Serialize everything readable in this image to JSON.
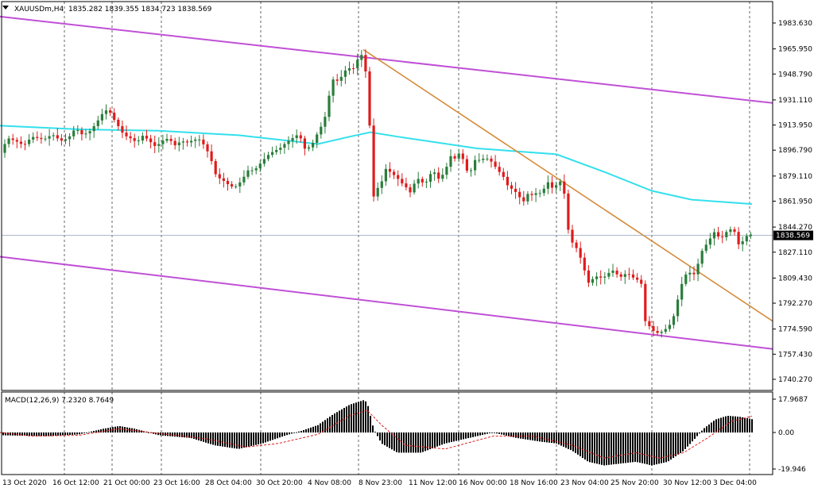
{
  "header": {
    "symbol": "XAUUSDm,H4",
    "ohlc": "1835.282 1839.355 1834.723 1838.569"
  },
  "macd_header": "MACD(12,26,9) 7.2320 8.7649",
  "chart_data": [
    {
      "type": "candlestick",
      "title": "XAUUSDm,H4",
      "ylim": [
        1740.27,
        1992.0
      ],
      "y_ticks": [
        "1983.630",
        "1965.950",
        "1948.790",
        "1931.110",
        "1913.950",
        "1896.790",
        "1879.110",
        "1861.950",
        "1844.270",
        "1827.110",
        "1809.430",
        "1792.270",
        "1774.590",
        "1757.430",
        "1740.270"
      ],
      "current_price": "1838.569",
      "x_labels": [
        "13 Oct 2020",
        "16 Oct 12:00",
        "21 Oct 00:00",
        "23 Oct 16:00",
        "28 Oct 04:00",
        "30 Oct 20:00",
        "4 Nov 08:00",
        "8 Nov 23:00",
        "11 Nov 12:00",
        "16 Nov 00:00",
        "18 Nov 16:00",
        "23 Nov 04:00",
        "25 Nov 20:00",
        "30 Nov 12:00",
        "3 Dec 04:00"
      ],
      "grid": true,
      "close_path": [
        [
          0,
          1895
        ],
        [
          10,
          1905
        ],
        [
          20,
          1903
        ],
        [
          30,
          1900
        ],
        [
          40,
          1906
        ],
        [
          55,
          1904
        ],
        [
          64,
          1907
        ],
        [
          68,
          1907
        ],
        [
          76,
          1903
        ],
        [
          86,
          1905
        ],
        [
          95,
          1912
        ],
        [
          104,
          1907
        ],
        [
          114,
          1910
        ],
        [
          122,
          1916
        ],
        [
          129,
          1922
        ],
        [
          136,
          1925
        ],
        [
          142,
          1919
        ],
        [
          149,
          1913
        ],
        [
          156,
          1907
        ],
        [
          164,
          1905
        ],
        [
          172,
          1902
        ],
        [
          180,
          1907
        ],
        [
          188,
          1903
        ],
        [
          196,
          1899
        ],
        [
          204,
          1903
        ],
        [
          212,
          1905
        ],
        [
          220,
          1900
        ],
        [
          228,
          1903
        ],
        [
          236,
          1902
        ],
        [
          244,
          1904
        ],
        [
          252,
          1904
        ],
        [
          258,
          1899
        ],
        [
          264,
          1893
        ],
        [
          272,
          1879
        ],
        [
          281,
          1876
        ],
        [
          290,
          1872
        ],
        [
          298,
          1872
        ],
        [
          305,
          1877
        ],
        [
          312,
          1883
        ],
        [
          320,
          1883
        ],
        [
          328,
          1888
        ],
        [
          336,
          1893
        ],
        [
          344,
          1896
        ],
        [
          352,
          1898
        ],
        [
          360,
          1902
        ],
        [
          368,
          1905
        ],
        [
          376,
          1908
        ],
        [
          384,
          1897
        ],
        [
          392,
          1900
        ],
        [
          400,
          1909
        ],
        [
          408,
          1917
        ],
        [
          414,
          1934
        ],
        [
          420,
          1947
        ],
        [
          426,
          1943
        ],
        [
          432,
          1950
        ],
        [
          438,
          1953
        ],
        [
          444,
          1952
        ],
        [
          449,
          1958
        ],
        [
          455,
          1962
        ],
        [
          461,
          1948
        ],
        [
          466,
          1905
        ],
        [
          470,
          1865
        ],
        [
          474,
          1870
        ],
        [
          480,
          1875
        ],
        [
          486,
          1885
        ],
        [
          492,
          1881
        ],
        [
          498,
          1879
        ],
        [
          504,
          1875
        ],
        [
          510,
          1872
        ],
        [
          516,
          1868
        ],
        [
          522,
          1875
        ],
        [
          528,
          1878
        ],
        [
          534,
          1872
        ],
        [
          540,
          1880
        ],
        [
          546,
          1882
        ],
        [
          552,
          1877
        ],
        [
          560,
          1882
        ],
        [
          566,
          1893
        ],
        [
          572,
          1891
        ],
        [
          578,
          1895
        ],
        [
          584,
          1889
        ],
        [
          590,
          1878
        ],
        [
          596,
          1890
        ],
        [
          602,
          1890
        ],
        [
          608,
          1891
        ],
        [
          614,
          1891
        ],
        [
          620,
          1888
        ],
        [
          626,
          1883
        ],
        [
          632,
          1880
        ],
        [
          640,
          1871
        ],
        [
          646,
          1870
        ],
        [
          652,
          1866
        ],
        [
          658,
          1861
        ],
        [
          664,
          1867
        ],
        [
          670,
          1866
        ],
        [
          676,
          1868
        ],
        [
          682,
          1867
        ],
        [
          688,
          1876
        ],
        [
          694,
          1871
        ],
        [
          700,
          1873
        ],
        [
          706,
          1876
        ],
        [
          712,
          1862
        ],
        [
          716,
          1835
        ],
        [
          722,
          1833
        ],
        [
          728,
          1827
        ],
        [
          734,
          1817
        ],
        [
          740,
          1806
        ],
        [
          746,
          1809
        ],
        [
          752,
          1811
        ],
        [
          758,
          1809
        ],
        [
          764,
          1812
        ],
        [
          770,
          1815
        ],
        [
          776,
          1812
        ],
        [
          782,
          1810
        ],
        [
          788,
          1813
        ],
        [
          794,
          1811
        ],
        [
          800,
          1808
        ],
        [
          806,
          1809
        ],
        [
          812,
          1779
        ],
        [
          818,
          1776
        ],
        [
          824,
          1772
        ],
        [
          830,
          1772
        ],
        [
          836,
          1774
        ],
        [
          842,
          1777
        ],
        [
          848,
          1784
        ],
        [
          854,
          1798
        ],
        [
          860,
          1810
        ],
        [
          866,
          1814
        ],
        [
          872,
          1811
        ],
        [
          876,
          1815
        ],
        [
          882,
          1827
        ],
        [
          888,
          1832
        ],
        [
          894,
          1837
        ],
        [
          900,
          1842
        ],
        [
          906,
          1835
        ],
        [
          912,
          1840
        ],
        [
          918,
          1843
        ],
        [
          924,
          1841
        ],
        [
          930,
          1831
        ],
        [
          936,
          1836
        ],
        [
          942,
          1840
        ],
        [
          946,
          1838.6
        ]
      ],
      "ma_line": [
        [
          0,
          1913.5
        ],
        [
          100,
          1911
        ],
        [
          200,
          1910
        ],
        [
          300,
          1907
        ],
        [
          400,
          1901
        ],
        [
          440,
          1906
        ],
        [
          466,
          1909
        ],
        [
          500,
          1906
        ],
        [
          600,
          1898
        ],
        [
          700,
          1894
        ],
        [
          760,
          1882
        ],
        [
          820,
          1869
        ],
        [
          870,
          1863
        ],
        [
          946,
          1860
        ]
      ],
      "channel_upper": [
        [
          0,
          1988
        ],
        [
          972,
          1929
        ]
      ],
      "channel_lower": [
        [
          0,
          1824
        ],
        [
          972,
          1761
        ]
      ],
      "trendline": [
        [
          457,
          1965.5
        ],
        [
          972,
          1780
        ]
      ]
    },
    {
      "type": "histogram",
      "title": "MACD(12,26,9)",
      "ylim": [
        -19.946,
        17.9687
      ],
      "y_ticks": [
        "17.9687",
        "0.00",
        "-19.946"
      ],
      "macd_hist": [
        [
          0,
          -1.5
        ],
        [
          60,
          -2
        ],
        [
          100,
          -1
        ],
        [
          130,
          2
        ],
        [
          150,
          3.5
        ],
        [
          170,
          2
        ],
        [
          200,
          -1.5
        ],
        [
          240,
          -3
        ],
        [
          270,
          -7
        ],
        [
          300,
          -9
        ],
        [
          330,
          -6
        ],
        [
          360,
          -1.5
        ],
        [
          380,
          1
        ],
        [
          400,
          4
        ],
        [
          420,
          10
        ],
        [
          440,
          15
        ],
        [
          458,
          17.5
        ],
        [
          462,
          16
        ],
        [
          470,
          2
        ],
        [
          480,
          -6
        ],
        [
          500,
          -11
        ],
        [
          530,
          -11
        ],
        [
          560,
          -6
        ],
        [
          590,
          -3
        ],
        [
          620,
          0
        ],
        [
          650,
          -3
        ],
        [
          680,
          -5
        ],
        [
          700,
          -6
        ],
        [
          720,
          -10
        ],
        [
          740,
          -16
        ],
        [
          760,
          -18
        ],
        [
          780,
          -17
        ],
        [
          800,
          -16
        ],
        [
          820,
          -18
        ],
        [
          840,
          -16
        ],
        [
          860,
          -10
        ],
        [
          875,
          -3
        ],
        [
          885,
          2
        ],
        [
          900,
          7
        ],
        [
          915,
          9
        ],
        [
          930,
          8.5
        ],
        [
          946,
          7.2
        ]
      ],
      "signal_line": [
        [
          0,
          0
        ],
        [
          40,
          -2
        ],
        [
          100,
          -1.5
        ],
        [
          150,
          2
        ],
        [
          200,
          -0.5
        ],
        [
          260,
          -3.5
        ],
        [
          310,
          -8
        ],
        [
          350,
          -6
        ],
        [
          400,
          -1
        ],
        [
          440,
          9
        ],
        [
          462,
          12
        ],
        [
          480,
          4
        ],
        [
          510,
          -7
        ],
        [
          560,
          -9
        ],
        [
          620,
          -2
        ],
        [
          670,
          -2
        ],
        [
          720,
          -7
        ],
        [
          760,
          -14
        ],
        [
          800,
          -11
        ],
        [
          830,
          -14
        ],
        [
          860,
          -11
        ],
        [
          890,
          -3
        ],
        [
          920,
          6
        ],
        [
          946,
          8.8
        ]
      ]
    }
  ],
  "colors": {
    "bull": "#2a7d3b",
    "bear": "#e01b1b",
    "ma": "#33e0ec",
    "channel": "#c050d6",
    "trendline": "#d48c3c",
    "grid": "#000000",
    "macd_bar": "#000000",
    "signal": "#e01b1b",
    "price_line": "#8fa2b8"
  },
  "icons": {
    "dropdown": "triangle-down-icon"
  }
}
